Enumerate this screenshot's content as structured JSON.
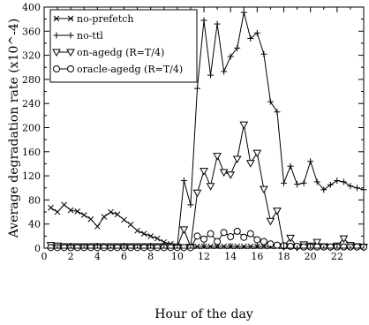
{
  "chart_data": {
    "type": "line",
    "title": "",
    "xlabel": "Hour of the day",
    "ylabel": "Average degradation rate (x10^-4)",
    "xlim": [
      0,
      24
    ],
    "ylim": [
      0,
      400
    ],
    "x_ticks": [
      0,
      2,
      4,
      6,
      8,
      10,
      12,
      14,
      16,
      18,
      20,
      22
    ],
    "y_ticks": [
      0,
      40,
      80,
      120,
      160,
      200,
      240,
      280,
      320,
      360,
      400
    ],
    "grid": false,
    "legend_position": "top-left",
    "series": [
      {
        "name": "no-prefetch",
        "marker": "x",
        "x": [
          0.5,
          1,
          1.5,
          2,
          2.5,
          3,
          3.5,
          4,
          4.5,
          5,
          5.5,
          6,
          6.5,
          7,
          7.5,
          8,
          8.5,
          9,
          9.5,
          10,
          10.5,
          11,
          11.5,
          12,
          12.5,
          13,
          13.5,
          14,
          14.5,
          15,
          15.5,
          16,
          16.5,
          17,
          17.5,
          18,
          18.5,
          19,
          19.5,
          20,
          20.5,
          21,
          21.5,
          22,
          22.5,
          23,
          23.5,
          24
        ],
        "y": [
          67,
          60,
          72,
          63,
          61,
          55,
          48,
          36,
          52,
          60,
          56,
          47,
          39,
          29,
          24,
          20,
          16,
          10,
          7,
          3,
          2,
          2,
          3,
          3,
          3,
          3,
          3,
          3,
          3,
          3,
          3,
          3,
          3,
          3,
          3,
          3,
          3,
          3,
          3,
          3,
          3,
          3,
          3,
          3,
          3,
          3,
          3,
          3
        ]
      },
      {
        "name": "no-ttl",
        "marker": "+",
        "x": [
          0.5,
          1,
          1.5,
          2,
          2.5,
          3,
          3.5,
          4,
          4.5,
          5,
          5.5,
          6,
          6.5,
          7,
          7.5,
          8,
          8.5,
          9,
          9.5,
          10,
          10.5,
          11,
          11.5,
          12,
          12.5,
          13,
          13.5,
          14,
          14.5,
          15,
          15.5,
          16,
          16.5,
          17,
          17.5,
          18,
          18.5,
          19,
          19.5,
          20,
          20.5,
          21,
          21.5,
          22,
          22.5,
          23,
          23.5,
          24
        ],
        "y": [
          2,
          2,
          2,
          2,
          2,
          2,
          2,
          2,
          2,
          2,
          2,
          2,
          2,
          2,
          2,
          2,
          2,
          2,
          2,
          2,
          112,
          72,
          265,
          378,
          287,
          372,
          293,
          318,
          332,
          391,
          348,
          357,
          322,
          243,
          226,
          108,
          136,
          106,
          108,
          144,
          110,
          97,
          105,
          112,
          110,
          103,
          100,
          97
        ]
      },
      {
        "name": "on-agedg (R=T/4)",
        "marker": "triangle-down",
        "x": [
          0.5,
          1,
          1.5,
          2,
          2.5,
          3,
          3.5,
          4,
          4.5,
          5,
          5.5,
          6,
          6.5,
          7,
          7.5,
          8,
          8.5,
          9,
          9.5,
          10,
          10.5,
          11,
          11.5,
          12,
          12.5,
          13,
          13.5,
          14,
          14.5,
          15,
          15.5,
          16,
          16.5,
          17,
          17.5,
          18,
          18.5,
          19,
          19.5,
          20,
          20.5,
          21,
          21.5,
          22,
          22.5,
          23,
          23.5,
          24
        ],
        "y": [
          5,
          4,
          3,
          3,
          3,
          3,
          3,
          3,
          3,
          3,
          3,
          3,
          3,
          3,
          3,
          3,
          3,
          3,
          3,
          2,
          31,
          2,
          92,
          128,
          103,
          153,
          126,
          122,
          148,
          205,
          141,
          158,
          98,
          45,
          62,
          3,
          17,
          2,
          6,
          4,
          10,
          3,
          2,
          4,
          16,
          5,
          3,
          2
        ]
      },
      {
        "name": "oracle-agedg (R=T/4)",
        "marker": "circle",
        "x": [
          0.5,
          1,
          1.5,
          2,
          2.5,
          3,
          3.5,
          4,
          4.5,
          5,
          5.5,
          6,
          6.5,
          7,
          7.5,
          8,
          8.5,
          9,
          9.5,
          10,
          10.5,
          11,
          11.5,
          12,
          12.5,
          13,
          13.5,
          14,
          14.5,
          15,
          15.5,
          16,
          16.5,
          17,
          17.5,
          18,
          18.5,
          19,
          19.5,
          20,
          20.5,
          21,
          21.5,
          22,
          22.5,
          23,
          23.5,
          24
        ],
        "y": [
          1,
          1,
          1,
          1,
          1,
          1,
          1,
          1,
          1,
          1,
          1,
          1,
          1,
          1,
          1,
          1,
          1,
          1,
          1,
          1,
          1,
          1,
          20,
          15,
          24,
          11,
          26,
          19,
          28,
          18,
          24,
          14,
          11,
          7,
          5,
          4,
          3,
          3,
          2,
          2,
          2,
          2,
          2,
          2,
          2,
          2,
          2,
          2
        ]
      }
    ]
  }
}
